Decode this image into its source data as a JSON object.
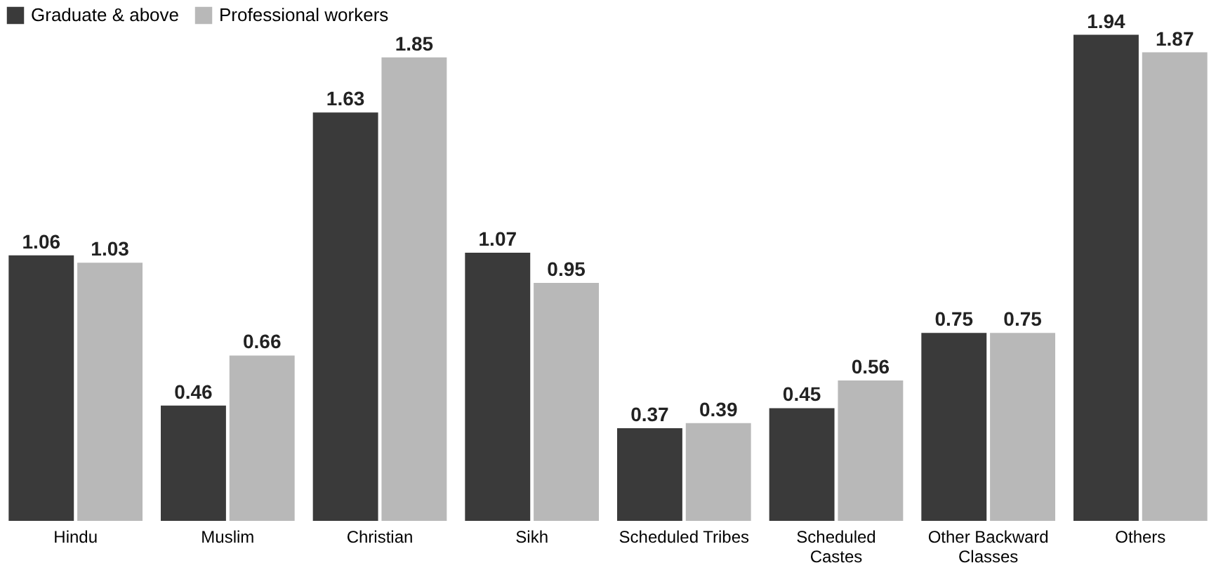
{
  "chart_data": {
    "type": "bar",
    "categories": [
      "Hindu",
      "Muslim",
      "Christian",
      "Sikh",
      "Scheduled Tribes",
      "Scheduled\nCastes",
      "Other Backward\nClasses",
      "Others"
    ],
    "series": [
      {
        "name": "Graduate & above",
        "color": "#3a3a3a",
        "values": [
          1.06,
          0.46,
          1.63,
          1.07,
          0.37,
          0.45,
          0.75,
          1.94
        ]
      },
      {
        "name": "Professional workers",
        "color": "#b8b8b8",
        "values": [
          1.03,
          0.66,
          1.85,
          0.95,
          0.39,
          0.56,
          0.75,
          1.87
        ]
      }
    ],
    "data_labels": true,
    "legend": "top left",
    "grid": false
  }
}
